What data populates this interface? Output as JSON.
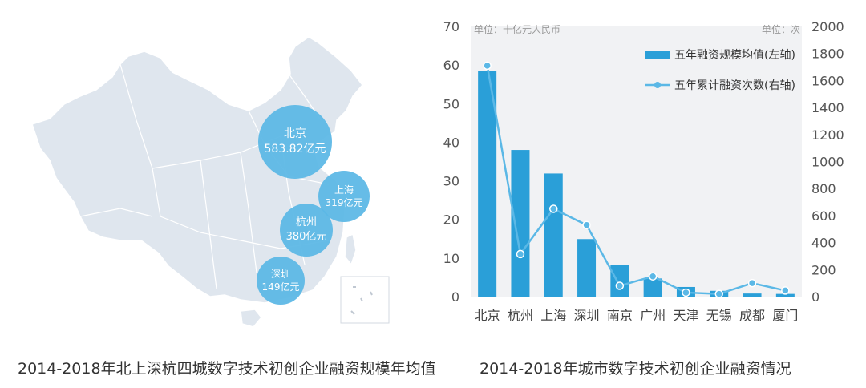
{
  "map": {
    "caption": "2014-2018年北上深杭四城数字技术初创企业融资规模年均值",
    "bubbles": [
      {
        "city": "北京",
        "value": "583.82亿元"
      },
      {
        "city": "上海",
        "value": "319亿元"
      },
      {
        "city": "杭州",
        "value": "380亿元"
      },
      {
        "city": "深圳",
        "value": "149亿元"
      }
    ],
    "colors": {
      "land": "#dfe6ee",
      "border": "#ffffff",
      "bubble": "#5bb8e6"
    }
  },
  "chart": {
    "caption": "2014-2018年城市数字技术初创企业融资情况",
    "left_unit": "单位：十亿元人民币",
    "right_unit": "单位：次",
    "colors": {
      "bar": "#2a9fd8",
      "line": "#5bb8e6",
      "plot_bg": "#f1f2f4"
    }
  },
  "chart_data": {
    "type": "bar",
    "categories": [
      "北京",
      "杭州",
      "上海",
      "深圳",
      "南京",
      "广州",
      "天津",
      "无锡",
      "成都",
      "厦门"
    ],
    "series": [
      {
        "name": "五年融资规模均值(左轴)",
        "type": "bar",
        "axis": "left",
        "values": [
          58.4,
          38.0,
          31.9,
          14.9,
          8.2,
          4.7,
          2.5,
          1.5,
          0.8,
          0.7
        ]
      },
      {
        "name": "五年累计融资次数(右轴)",
        "type": "line",
        "axis": "right",
        "values": [
          1710,
          315,
          650,
          530,
          80,
          150,
          30,
          20,
          100,
          45
        ]
      }
    ],
    "ylim_left": [
      0,
      70
    ],
    "yticks_left": [
      0,
      10,
      20,
      30,
      40,
      50,
      60,
      70
    ],
    "ylim_right": [
      0,
      2000
    ],
    "yticks_right": [
      0,
      200,
      400,
      600,
      800,
      1000,
      1200,
      1400,
      1600,
      1800,
      2000
    ],
    "legend": "top-right",
    "grid": false
  }
}
